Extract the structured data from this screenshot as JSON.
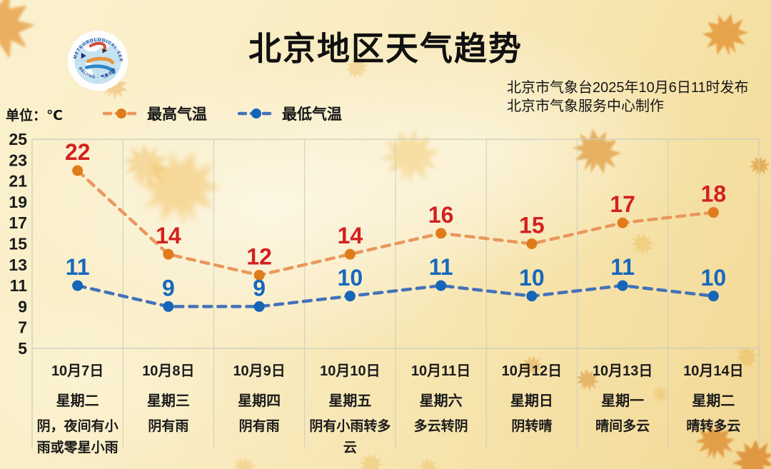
{
  "header": {
    "title": "北京地区天气趋势",
    "issue_line1": "北京市气象台2025年10月6日11时发布",
    "issue_line2": "北京市气象服务中心制作",
    "unit_label": "单位：℃",
    "logo": {
      "text_top": "METEOROLOGICAL SERVICE",
      "text_bottom": "BEIJING · 气象北京"
    }
  },
  "legend": [
    {
      "label": "最高气温",
      "point_color": "#E07B1A",
      "dash_color": "#E9975C"
    },
    {
      "label": "最低气温",
      "point_color": "#1565B8",
      "dash_color": "#4472B8"
    }
  ],
  "colors": {
    "max_value_label": "#D42020",
    "min_value_label": "#1668BC",
    "grid": "#C9CDBE",
    "axis_text": "#1b1b1b"
  },
  "chart_data": {
    "type": "line",
    "title": "北京地区天气趋势",
    "ylabel": "℃",
    "ylim": [
      5,
      25
    ],
    "yticks": [
      25,
      23,
      21,
      19,
      17,
      15,
      13,
      11,
      9,
      7,
      5
    ],
    "grid": "vertical-only",
    "legend_position": "top-left",
    "categories": [
      "10月7日",
      "10月8日",
      "10月9日",
      "10月10日",
      "10月11日",
      "10月12日",
      "10月13日",
      "10月14日"
    ],
    "weekdays": [
      "星期二",
      "星期三",
      "星期四",
      "星期五",
      "星期六",
      "星期日",
      "星期一",
      "星期二"
    ],
    "weather": [
      "阴，夜间有小雨或零星小雨",
      "阴有雨",
      "阴有雨",
      "阴有小雨转多云",
      "多云转阴",
      "阴转晴",
      "晴间多云",
      "晴转多云"
    ],
    "series": [
      {
        "name": "最高气温",
        "values": [
          22,
          14,
          12,
          14,
          16,
          15,
          17,
          18
        ],
        "point_color": "#E07B1A",
        "line_color": "#E9975C",
        "label_color": "#D42020"
      },
      {
        "name": "最低气温",
        "values": [
          11,
          9,
          9,
          10,
          11,
          10,
          11,
          10
        ],
        "point_color": "#1565B8",
        "line_color": "#4472B8",
        "label_color": "#1668BC"
      }
    ]
  }
}
